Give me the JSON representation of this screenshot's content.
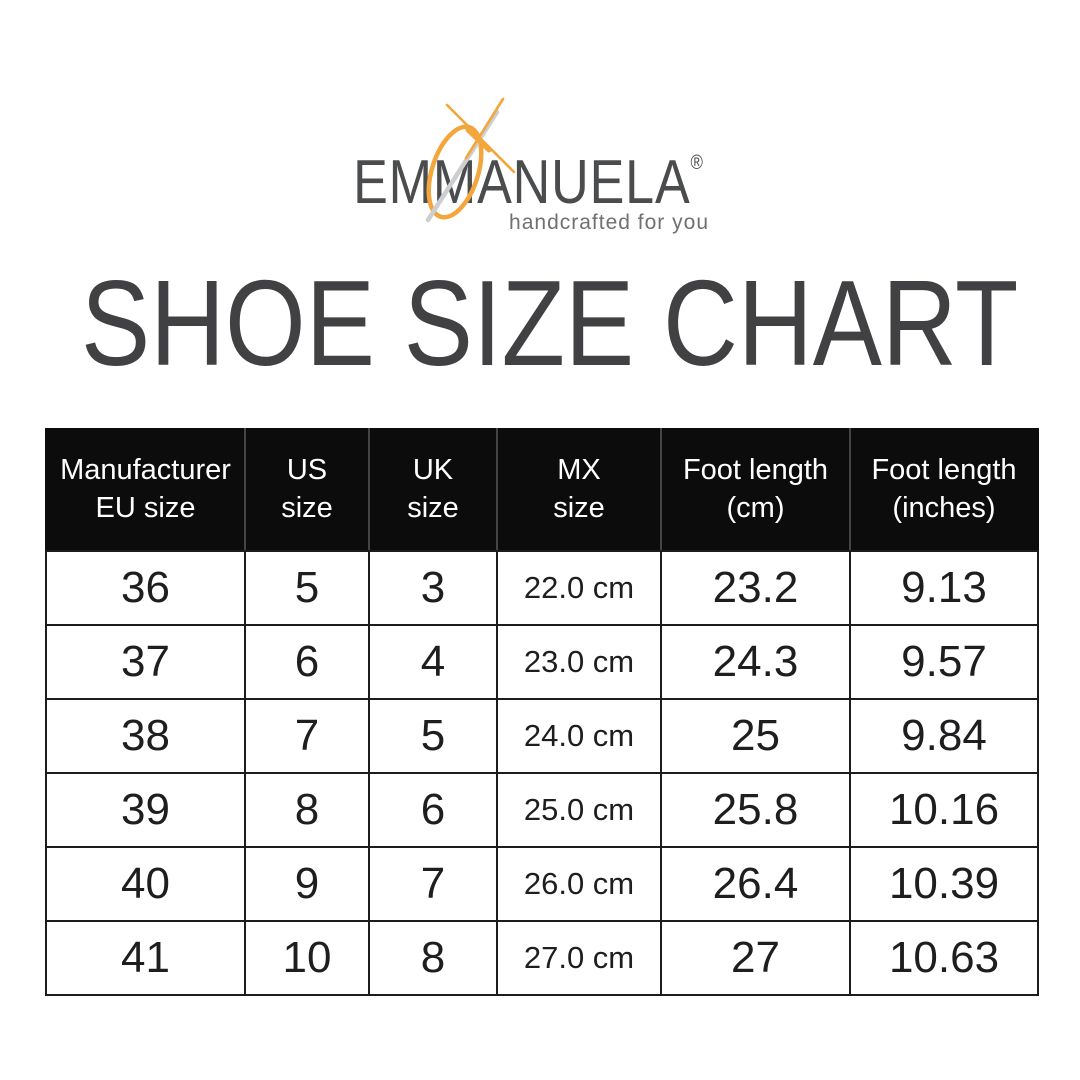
{
  "brand": {
    "name": "EMMANUELA",
    "registered": "®",
    "tagline": "handcrafted for you"
  },
  "page_title": "SHOE SIZE CHART",
  "colors": {
    "accent_orange": "#F2A63C",
    "needle_silver": "#CDCED0",
    "header_bg": "#0C0C0C",
    "header_text": "#FFFFFF",
    "title_gray": "#414042",
    "table_border": "#1C1C1C"
  },
  "chart_data": {
    "type": "table",
    "title": "SHOE SIZE CHART",
    "columns": [
      [
        "Manufacturer",
        "EU size"
      ],
      [
        "US",
        "size"
      ],
      [
        "UK",
        "size"
      ],
      [
        "MX",
        "size"
      ],
      [
        "Foot length",
        "(cm)"
      ],
      [
        "Foot length",
        "(inches)"
      ]
    ],
    "rows": [
      [
        "36",
        "5",
        "3",
        "22.0 cm",
        "23.2",
        "9.13"
      ],
      [
        "37",
        "6",
        "4",
        "23.0 cm",
        "24.3",
        "9.57"
      ],
      [
        "38",
        "7",
        "5",
        "24.0 cm",
        "25",
        "9.84"
      ],
      [
        "39",
        "8",
        "6",
        "25.0 cm",
        "25.8",
        "10.16"
      ],
      [
        "40",
        "9",
        "7",
        "26.0 cm",
        "26.4",
        "10.39"
      ],
      [
        "41",
        "10",
        "8",
        "27.0 cm",
        "27",
        "10.63"
      ]
    ]
  }
}
